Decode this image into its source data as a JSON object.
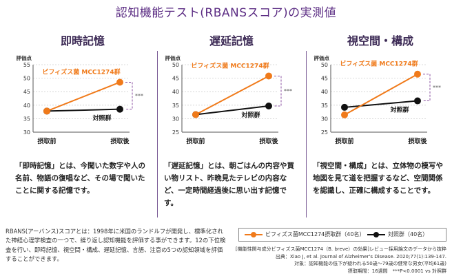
{
  "title": "認知機能テスト(RBANSスコア)の実測値",
  "colors": {
    "treatment": "#f07a1a",
    "control": "#111111",
    "title": "#5b2c83",
    "bracket": "#8a4fa0"
  },
  "chart_data": [
    {
      "type": "line",
      "title": "即時記憶",
      "ylabel": "評価点",
      "ylim": [
        30,
        55
      ],
      "yticks": [
        30,
        35,
        40,
        45,
        50,
        55
      ],
      "categories": [
        "摂取前",
        "摂取後"
      ],
      "series": [
        {
          "name": "ビフィズス菌 MCC1274群",
          "values": [
            37.8,
            48.5
          ]
        },
        {
          "name": "対照群",
          "values": [
            37.8,
            38.5
          ]
        }
      ],
      "annotations": [
        "***"
      ]
    },
    {
      "type": "line",
      "title": "遅延記憶",
      "ylabel": "評価点",
      "ylim": [
        25,
        50
      ],
      "yticks": [
        25,
        30,
        35,
        40,
        45,
        50
      ],
      "categories": [
        "摂取前",
        "摂取後"
      ],
      "series": [
        {
          "name": "ビフィズス菌 MCC1274群",
          "values": [
            31.5,
            45.8
          ]
        },
        {
          "name": "対照群",
          "values": [
            31.5,
            34.7
          ]
        }
      ],
      "annotations": [
        "***"
      ]
    },
    {
      "type": "line",
      "title": "視空間・構成",
      "ylabel": "評価点",
      "ylim": [
        25,
        50
      ],
      "yticks": [
        25,
        30,
        35,
        40,
        45,
        50
      ],
      "categories": [
        "摂取前",
        "摂取後"
      ],
      "series": [
        {
          "name": "ビフィズス菌 MCC1274群",
          "values": [
            31.4,
            46.5
          ]
        },
        {
          "name": "対照群",
          "values": [
            34.2,
            36.6
          ]
        }
      ],
      "annotations": [
        "***"
      ]
    }
  ],
  "series_labels": {
    "treatment": "ビフィズス菌 MCC1274群",
    "control": "対照群"
  },
  "descriptions": [
    "「即時記憶」とは、今聞いた数字や人の名前、物語の復唱など、その場で聞いたことに関する記憶です。",
    "「遅延記憶」とは、朝ごはんの内容や買い物リスト、昨晩見たテレビの内容など、一定時間経過後に思い出す記憶です。",
    "「視空間・構成」とは、立体物の模写や地図を見て道を把握するなど、空間関係を認識し、正確に構成することです。"
  ],
  "footnote": "RBANS(アーバンス)スコアとは：1998年に米国のランドルフが開発し、標準化された神経心理学検査の一つで、繰り返し認知機能を評価する事ができます。12の下位検査を行い、即時記憶、視空間・構成、遅延記憶、言語、注意の5つの認知領域を評価することができます。",
  "legend": {
    "treatment": "ビフィズス菌MCC1274摂取群（40名）",
    "control": "対照群（40名）"
  },
  "source": [
    "[機能性関与成分ビフィズス菌MCC1274（B. breve）の効果]レビュー採用論文のデータから抜粋",
    "出典：Xiao J, et al. Journal of Alzheimer's Disease. 2020;77(1):139-147.",
    "対象：認知機能の低下が疑われる50歳〜79歳の健常な男女(平均61歳)",
    "摂取期間：16週間　***P<0.0001 vs 対照群"
  ]
}
